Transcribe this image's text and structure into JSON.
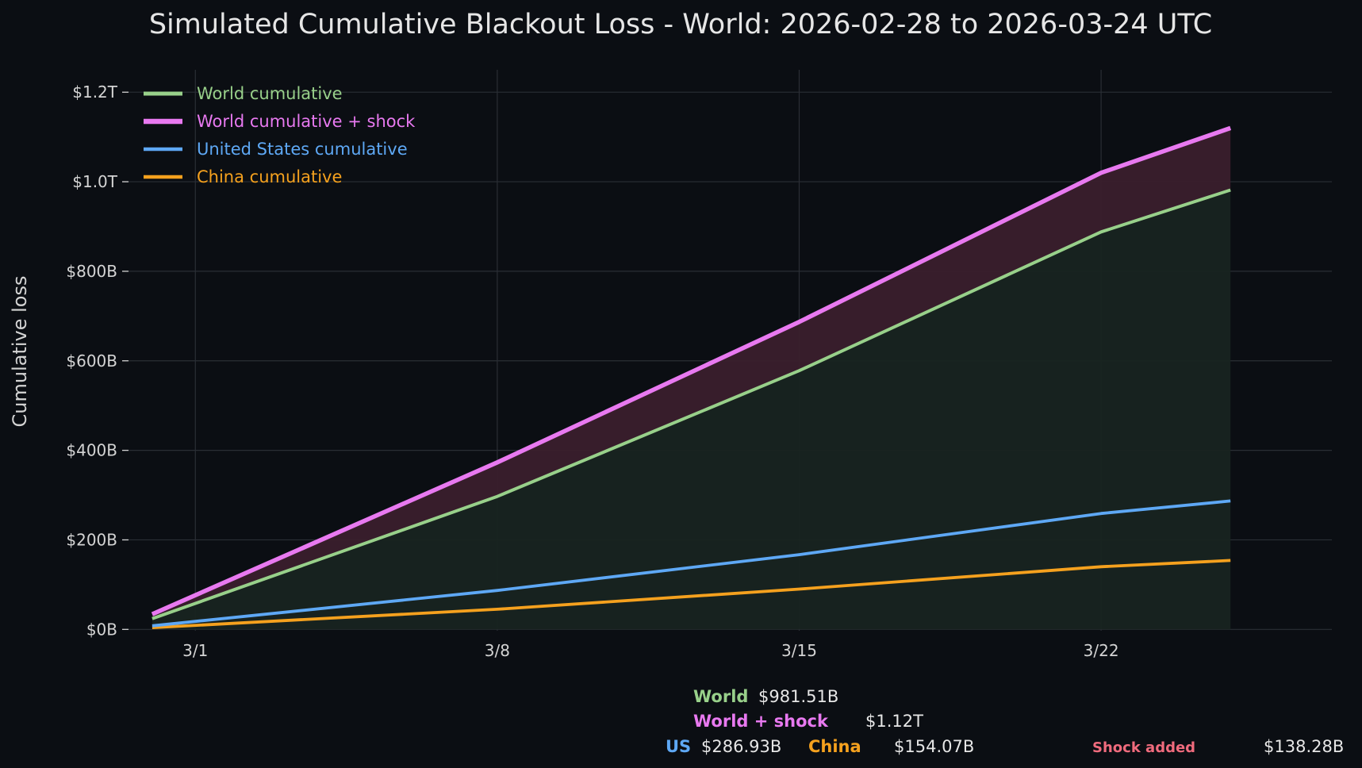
{
  "chart_data": {
    "type": "line",
    "title": "Simulated Cumulative Blackout Loss - World: 2026-02-28 to 2026-03-24 UTC",
    "xlabel": "",
    "ylabel": "Cumulative loss",
    "x_start": "2026-02-28",
    "x_end": "2026-03-24",
    "x_ticks": [
      {
        "date": "2026-03-01",
        "label": "3/1"
      },
      {
        "date": "2026-03-08",
        "label": "3/8"
      },
      {
        "date": "2026-03-15",
        "label": "3/15"
      },
      {
        "date": "2026-03-22",
        "label": "3/22"
      }
    ],
    "y_unit": "billion USD",
    "ylim": [
      -3,
      1250
    ],
    "y_ticks": [
      {
        "value": 0,
        "label": "$0B"
      },
      {
        "value": 200,
        "label": "$200B"
      },
      {
        "value": 400,
        "label": "$400B"
      },
      {
        "value": 600,
        "label": "$600B"
      },
      {
        "value": 800,
        "label": "$800B"
      },
      {
        "value": 1000,
        "label": "$1.0T"
      },
      {
        "value": 1200,
        "label": "$1.2T"
      }
    ],
    "grid": true,
    "legend_position": "top-left",
    "series": [
      {
        "name": "World cumulative",
        "color": "#98d08a",
        "points": [
          [
            "2026-02-28",
            24
          ],
          [
            "2026-03-08",
            297
          ],
          [
            "2026-03-15",
            578
          ],
          [
            "2026-03-22",
            888
          ],
          [
            "2026-03-25",
            981.51
          ]
        ]
      },
      {
        "name": "World cumulative + shock",
        "color": "#e879f0",
        "points": [
          [
            "2026-02-28",
            34
          ],
          [
            "2026-03-08",
            373
          ],
          [
            "2026-03-15",
            687
          ],
          [
            "2026-03-22",
            1020
          ],
          [
            "2026-03-25",
            1120
          ]
        ]
      },
      {
        "name": "United States cumulative",
        "color": "#5ea8f5",
        "points": [
          [
            "2026-02-28",
            8
          ],
          [
            "2026-03-08",
            87
          ],
          [
            "2026-03-15",
            167
          ],
          [
            "2026-03-22",
            259
          ],
          [
            "2026-03-25",
            286.93
          ]
        ]
      },
      {
        "name": "China cumulative",
        "color": "#f5a11e",
        "points": [
          [
            "2026-02-28",
            4
          ],
          [
            "2026-03-08",
            45
          ],
          [
            "2026-03-15",
            90
          ],
          [
            "2026-03-22",
            140
          ],
          [
            "2026-03-25",
            154.07
          ]
        ]
      }
    ],
    "shaded_regions": [
      {
        "between": [
          "World cumulative",
          "World cumulative + shock"
        ],
        "color": "#3a1f2c"
      },
      {
        "between": [
          "zero",
          "World cumulative"
        ],
        "color": "#182420"
      }
    ]
  },
  "summary": {
    "world": {
      "label": "World",
      "value": "$981.51B",
      "color": "#98d08a"
    },
    "world_shock": {
      "label": "World + shock",
      "value": "$1.12T",
      "color": "#e879f0"
    },
    "us": {
      "label": "US",
      "value": "$286.93B",
      "color": "#5ea8f5"
    },
    "china": {
      "label": "China",
      "value": "$154.07B",
      "color": "#f5a11e"
    },
    "shock": {
      "label": "Shock added",
      "value": "$138.28B",
      "color": "#f06b7d"
    }
  },
  "colors": {
    "background": "#0b0e13",
    "grid": "#2a2e35",
    "text": "#d4d4d4"
  }
}
